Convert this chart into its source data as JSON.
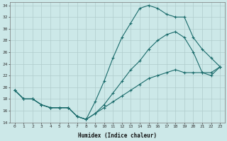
{
  "xlabel": "Humidex (Indice chaleur)",
  "bg_color": "#cce8e8",
  "grid_color": "#b0cccc",
  "line_color": "#1a6b6b",
  "xlim": [
    -0.5,
    23.5
  ],
  "ylim": [
    14,
    34.5
  ],
  "yticks": [
    14,
    16,
    18,
    20,
    22,
    24,
    26,
    28,
    30,
    32,
    34
  ],
  "xticks": [
    0,
    1,
    2,
    3,
    4,
    5,
    6,
    7,
    8,
    9,
    10,
    11,
    12,
    13,
    14,
    15,
    16,
    17,
    18,
    19,
    20,
    21,
    22,
    23
  ],
  "series1_x": [
    0,
    1,
    2,
    3,
    4,
    5,
    6,
    7,
    8,
    9,
    10,
    11,
    12,
    13,
    14,
    15,
    16,
    17,
    18,
    19,
    20,
    21,
    22,
    23
  ],
  "series1_y": [
    19.5,
    18.0,
    18.0,
    17.0,
    16.5,
    16.5,
    16.5,
    15.0,
    14.5,
    17.5,
    21.0,
    25.0,
    28.5,
    31.0,
    33.5,
    34.0,
    33.5,
    32.5,
    32.0,
    32.0,
    28.5,
    26.5,
    25.0,
    23.5
  ],
  "series2_x": [
    0,
    1,
    2,
    3,
    4,
    5,
    6,
    7,
    8,
    9,
    10,
    11,
    12,
    13,
    14,
    15,
    16,
    17,
    18,
    19,
    20,
    21,
    22,
    23
  ],
  "series2_y": [
    19.5,
    18.0,
    18.0,
    17.0,
    16.5,
    16.5,
    16.5,
    15.0,
    14.5,
    15.5,
    17.0,
    19.0,
    21.0,
    23.0,
    24.5,
    26.5,
    28.0,
    29.0,
    29.5,
    28.5,
    26.0,
    22.5,
    22.0,
    23.5
  ],
  "series3_x": [
    0,
    1,
    2,
    3,
    4,
    5,
    6,
    7,
    8,
    9,
    10,
    11,
    12,
    13,
    14,
    15,
    16,
    17,
    18,
    19,
    20,
    21,
    22,
    23
  ],
  "series3_y": [
    19.5,
    18.0,
    18.0,
    17.0,
    16.5,
    16.5,
    16.5,
    15.0,
    14.5,
    15.5,
    16.5,
    17.5,
    18.5,
    19.5,
    20.5,
    21.5,
    22.0,
    22.5,
    23.0,
    22.5,
    22.5,
    22.5,
    22.5,
    23.5
  ]
}
